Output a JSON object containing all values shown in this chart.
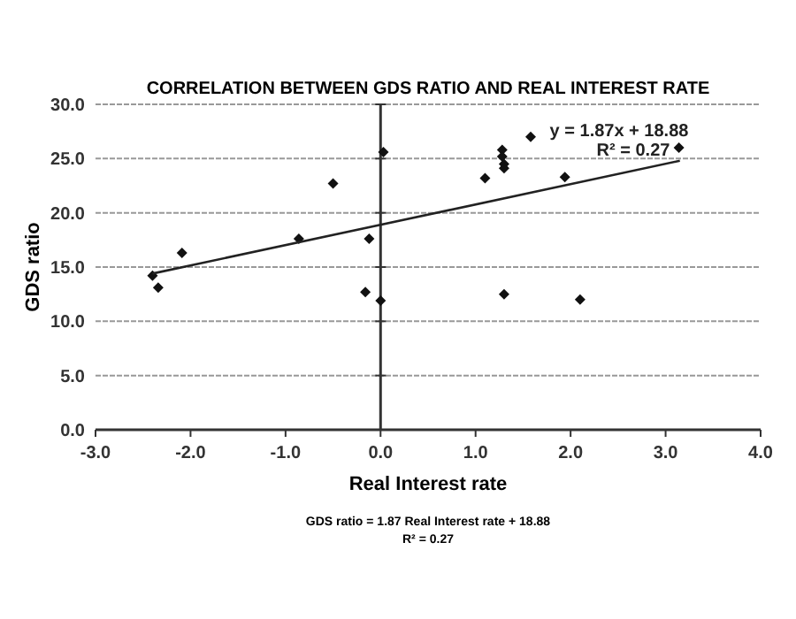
{
  "chart_data": {
    "type": "scatter",
    "title": "CORRELATION BETWEEN GDS RATIO AND REAL INTEREST RATE",
    "xlabel": "Real Interest rate",
    "ylabel": "GDS ratio",
    "xlim": [
      -3,
      4
    ],
    "xticks": [
      {
        "value": -3,
        "label": "-3.0"
      },
      {
        "value": -2,
        "label": "-2.0"
      },
      {
        "value": -1,
        "label": "-1.0"
      },
      {
        "value": 0,
        "label": "0.0"
      },
      {
        "value": 1,
        "label": "1.0"
      },
      {
        "value": 2,
        "label": "2.0"
      },
      {
        "value": 3,
        "label": "3.0"
      },
      {
        "value": 4,
        "label": "4.0"
      }
    ],
    "ylim": [
      0,
      30
    ],
    "yticks": [
      {
        "value": 0,
        "label": "0.0"
      },
      {
        "value": 5,
        "label": "5.0"
      },
      {
        "value": 10,
        "label": "10.0"
      },
      {
        "value": 15,
        "label": "15.0"
      },
      {
        "value": 20,
        "label": "20.0"
      },
      {
        "value": 25,
        "label": "25.0"
      },
      {
        "value": 30,
        "label": "30.0"
      }
    ],
    "grid": "y",
    "series": [
      {
        "marker": "diamond",
        "color": "#111111",
        "x": [
          -2.4,
          -2.34,
          -2.09,
          -0.86,
          -0.5,
          -0.12,
          -0.16,
          0.0,
          0.03,
          1.1,
          1.28,
          1.28,
          1.3,
          1.3,
          1.58,
          1.94,
          1.3,
          2.1,
          3.14
        ],
        "values": [
          14.2,
          13.1,
          16.3,
          17.6,
          22.7,
          17.6,
          12.7,
          11.9,
          25.6,
          23.2,
          25.8,
          25.2,
          24.5,
          24.1,
          27.0,
          23.3,
          12.5,
          12.0,
          26.0
        ]
      },
      {
        "type": "line",
        "color": "#222222",
        "x": [
          -2.4,
          3.15
        ],
        "values": [
          14.4,
          24.8
        ]
      }
    ],
    "annotations": [
      "y = 1.87x + 18.88",
      "R² = 0.27",
      "GDS ratio = 1.87 Real Interest rate + 18.88",
      "R² = 0.27"
    ]
  }
}
